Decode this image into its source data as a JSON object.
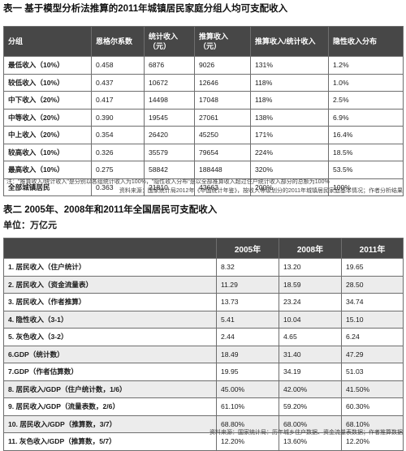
{
  "table1": {
    "title": "表一 基于模型分析法推算的2011年城镇居民家庭分组人均可支配收入",
    "headers": [
      "分组",
      "恩格尔系数",
      "统计收入（元）",
      "推算收入（元）",
      "推算收入/统计收入",
      "隐性收入分布"
    ],
    "rows": [
      [
        "最低收入（10%）",
        "0.458",
        "6876",
        "9026",
        "131%",
        "1.2%"
      ],
      [
        "较低收入（10%）",
        "0.437",
        "10672",
        "12646",
        "118%",
        "1.0%"
      ],
      [
        "中下收入（20%）",
        "0.417",
        "14498",
        "17048",
        "118%",
        "2.5%"
      ],
      [
        "中等收入（20%）",
        "0.390",
        "19545",
        "27061",
        "138%",
        "6.9%"
      ],
      [
        "中上收入（20%）",
        "0.354",
        "26420",
        "45250",
        "171%",
        "16.4%"
      ],
      [
        "较高收入（10%）",
        "0.326",
        "35579",
        "79654",
        "224%",
        "18.5%"
      ],
      [
        "最高收入（10%）",
        "0.275",
        "58842",
        "188448",
        "320%",
        "53.5%"
      ],
      [
        "全部城镇居民",
        "0.363",
        "21810",
        "43663",
        "200%",
        "100%"
      ]
    ],
    "note": "注：\"推算收入/统计收入\"是分别以各组统计收入为100%，\"隐性收入分布\"是以全部推算收入超过住户统计收入部分的总额为100%",
    "source": "资料来源：国家统计局2012年《中国统计年鉴》，按收入等级划分的2011年城镇居民家庭基本情况；作者分析结果"
  },
  "table2": {
    "title": "表二 2005年、2008年和2011年全国居民可支配收入",
    "unit": "单位：万亿元",
    "headers": [
      "",
      "2005年",
      "2008年",
      "2011年"
    ],
    "rows": [
      [
        "1. 居民收入（住户统计）",
        "8.32",
        "13.20",
        "19.65"
      ],
      [
        "2. 居民收入（资金流量表）",
        "11.29",
        "18.59",
        "28.50"
      ],
      [
        "3. 居民收入（作者推算）",
        "13.73",
        "23.24",
        "34.74"
      ],
      [
        "4. 隐性收入（3-1）",
        "5.41",
        "10.04",
        "15.10"
      ],
      [
        "5. 灰色收入（3-2）",
        "2.44",
        "4.65",
        "6.24"
      ],
      [
        "6.GDP（统计数）",
        "18.49",
        "31.40",
        "47.29"
      ],
      [
        "7.GDP（作者估算数）",
        "19.95",
        "34.19",
        "51.03"
      ],
      [
        "8. 居民收入/GDP（住户统计数，1/6）",
        "45.00%",
        "42.00%",
        "41.50%"
      ],
      [
        "9. 居民收入/GDP（流量表数，2/6）",
        "61.10%",
        "59.20%",
        "60.30%"
      ],
      [
        "10. 居民收入/GDP（推算数，3/7）",
        "68.80%",
        "68.00%",
        "68.10%"
      ],
      [
        "11. 灰色收入/GDP（推算数，5/7）",
        "12.20%",
        "13.60%",
        "12.20%"
      ]
    ],
    "source": "资料来源：国家统计局：历年城乡住户数据、资金流量表数据；作者推算数据"
  }
}
